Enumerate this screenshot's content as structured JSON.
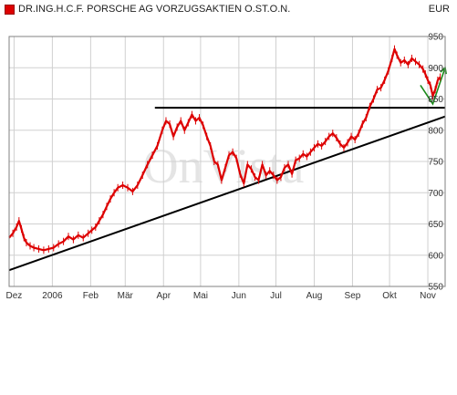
{
  "header": {
    "title": "DR.ING.H.C.F. PORSCHE AG VORZUGSAKTIEN O.ST.O.N.",
    "currency": "EUR"
  },
  "watermark": "OnVista",
  "colors": {
    "price_line": "#dd0000",
    "grid": "#d0d0d0",
    "trend": "#000000",
    "arrow": "#1a8a1a",
    "plot_bg": "#ffffff",
    "frame": "#808080"
  },
  "chart_data": {
    "type": "line",
    "title": "DR.ING.H.C.F. PORSCHE AG VORZUGSAKTIEN O.ST.O.N.",
    "xlabel": "",
    "ylabel": "",
    "ylim": [
      550,
      950
    ],
    "xlim": [
      0,
      353
    ],
    "yticks": [
      550,
      600,
      650,
      700,
      750,
      800,
      850,
      900,
      950
    ],
    "grid": true,
    "legend": "top-left",
    "xticks": [
      {
        "label": "Dez",
        "day": 4
      },
      {
        "label": "2006",
        "day": 35
      },
      {
        "label": "Feb",
        "day": 66
      },
      {
        "label": "Mär",
        "day": 94
      },
      {
        "label": "Apr",
        "day": 125
      },
      {
        "label": "Mai",
        "day": 155
      },
      {
        "label": "Jun",
        "day": 186
      },
      {
        "label": "Jul",
        "day": 216
      },
      {
        "label": "Aug",
        "day": 247
      },
      {
        "label": "Sep",
        "day": 278
      },
      {
        "label": "Okt",
        "day": 308
      },
      {
        "label": "Nov",
        "day": 339
      }
    ],
    "series": [
      {
        "name": "",
        "points": [
          [
            0,
            628
          ],
          [
            3,
            635
          ],
          [
            6,
            645
          ],
          [
            8,
            655
          ],
          [
            10,
            642
          ],
          [
            12,
            628
          ],
          [
            14,
            620
          ],
          [
            17,
            615
          ],
          [
            20,
            612
          ],
          [
            24,
            610
          ],
          [
            28,
            608
          ],
          [
            32,
            610
          ],
          [
            36,
            612
          ],
          [
            40,
            618
          ],
          [
            44,
            622
          ],
          [
            48,
            630
          ],
          [
            52,
            625
          ],
          [
            56,
            632
          ],
          [
            60,
            628
          ],
          [
            64,
            635
          ],
          [
            67,
            640
          ],
          [
            70,
            645
          ],
          [
            73,
            655
          ],
          [
            76,
            665
          ],
          [
            79,
            678
          ],
          [
            82,
            690
          ],
          [
            85,
            700
          ],
          [
            88,
            708
          ],
          [
            92,
            712
          ],
          [
            96,
            708
          ],
          [
            100,
            702
          ],
          [
            104,
            712
          ],
          [
            108,
            728
          ],
          [
            112,
            745
          ],
          [
            116,
            760
          ],
          [
            120,
            775
          ],
          [
            124,
            800
          ],
          [
            127,
            815
          ],
          [
            130,
            810
          ],
          [
            133,
            790
          ],
          [
            136,
            805
          ],
          [
            139,
            815
          ],
          [
            142,
            800
          ],
          [
            145,
            812
          ],
          [
            148,
            825
          ],
          [
            151,
            815
          ],
          [
            154,
            820
          ],
          [
            157,
            808
          ],
          [
            160,
            790
          ],
          [
            163,
            775
          ],
          [
            166,
            750
          ],
          [
            169,
            745
          ],
          [
            172,
            720
          ],
          [
            175,
            740
          ],
          [
            178,
            760
          ],
          [
            181,
            765
          ],
          [
            184,
            755
          ],
          [
            187,
            730
          ],
          [
            190,
            715
          ],
          [
            193,
            745
          ],
          [
            196,
            738
          ],
          [
            199,
            725
          ],
          [
            202,
            720
          ],
          [
            205,
            745
          ],
          [
            208,
            728
          ],
          [
            211,
            735
          ],
          [
            214,
            728
          ],
          [
            217,
            720
          ],
          [
            220,
            725
          ],
          [
            223,
            740
          ],
          [
            226,
            745
          ],
          [
            229,
            730
          ],
          [
            232,
            752
          ],
          [
            235,
            755
          ],
          [
            238,
            762
          ],
          [
            241,
            758
          ],
          [
            244,
            765
          ],
          [
            247,
            772
          ],
          [
            250,
            778
          ],
          [
            253,
            775
          ],
          [
            256,
            782
          ],
          [
            259,
            790
          ],
          [
            262,
            795
          ],
          [
            265,
            788
          ],
          [
            268,
            778
          ],
          [
            271,
            772
          ],
          [
            274,
            780
          ],
          [
            277,
            790
          ],
          [
            280,
            785
          ],
          [
            283,
            795
          ],
          [
            286,
            810
          ],
          [
            289,
            820
          ],
          [
            292,
            838
          ],
          [
            295,
            850
          ],
          [
            298,
            865
          ],
          [
            301,
            868
          ],
          [
            304,
            880
          ],
          [
            307,
            895
          ],
          [
            310,
            915
          ],
          [
            312,
            930
          ],
          [
            314,
            920
          ],
          [
            317,
            908
          ],
          [
            320,
            912
          ],
          [
            323,
            905
          ],
          [
            326,
            915
          ],
          [
            329,
            910
          ],
          [
            332,
            905
          ],
          [
            335,
            898
          ],
          [
            337,
            890
          ],
          [
            339,
            880
          ],
          [
            341,
            872
          ],
          [
            343,
            855
          ],
          [
            345,
            865
          ],
          [
            347,
            880
          ],
          [
            349,
            885
          ]
        ]
      }
    ],
    "annotations": [
      {
        "type": "line",
        "points": [
          [
            0,
            576
          ],
          [
            353,
            822
          ]
        ],
        "label": ""
      },
      {
        "type": "hline",
        "y": 836,
        "x_from": 118,
        "x_to": 353,
        "label": ""
      },
      {
        "type": "arrow",
        "points": [
          [
            333,
            872
          ],
          [
            343,
            842
          ],
          [
            353,
            900
          ]
        ],
        "label": ""
      }
    ]
  }
}
